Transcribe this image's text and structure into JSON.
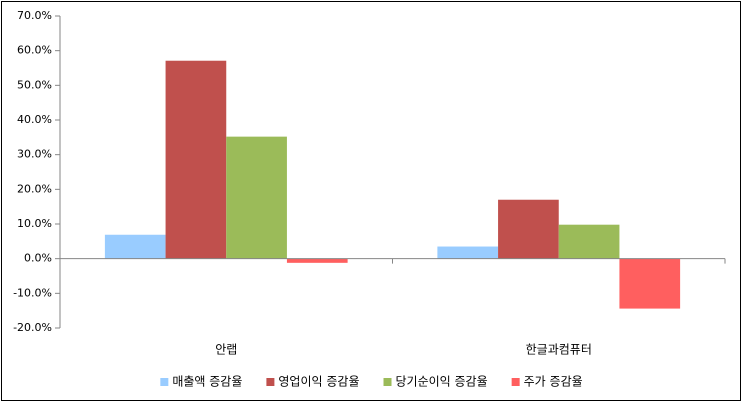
{
  "chart_data": {
    "type": "bar",
    "categories": [
      "안랩",
      "한글과컴퓨터"
    ],
    "series": [
      {
        "name": "매출액 증감율",
        "color": "#99ccff",
        "values": [
          6.9,
          3.5
        ]
      },
      {
        "name": "영업이익 증감율",
        "color": "#c0504d",
        "values": [
          57.1,
          17
        ]
      },
      {
        "name": "당기순이익 증감율",
        "color": "#9bbb59",
        "values": [
          35.2,
          9.8
        ]
      },
      {
        "name": "주가 증감율",
        "color": "#ff5f5f",
        "values": [
          -1.2,
          -14.4
        ]
      }
    ],
    "ylim": [
      -20,
      70
    ],
    "yticks": [
      {
        "value": -20,
        "label": "-20.0%"
      },
      {
        "value": -10,
        "label": "-10.0%"
      },
      {
        "value": 0,
        "label": "0.0%"
      },
      {
        "value": 10,
        "label": "10.0%"
      },
      {
        "value": 20,
        "label": "20.0%"
      },
      {
        "value": 30,
        "label": "30.0%"
      },
      {
        "value": 40,
        "label": "40.0%"
      },
      {
        "value": 50,
        "label": "50.0%"
      },
      {
        "value": 60,
        "label": "60.0%"
      },
      {
        "value": 70,
        "label": "70.0%"
      }
    ],
    "grid": false,
    "legend": "bottom"
  }
}
